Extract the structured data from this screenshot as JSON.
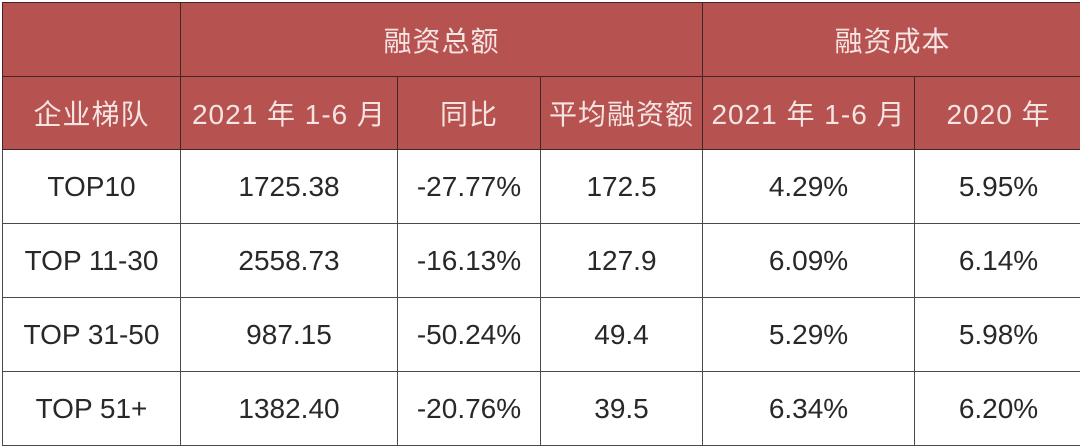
{
  "colors": {
    "header_bg": "#b65350",
    "header_text": "#f6e4e2",
    "body_text": "#282828",
    "grid_header": "#402626",
    "grid_body": "#4a4a4a"
  },
  "chart_data": {
    "type": "table",
    "header_groups": [
      {
        "label": "",
        "span": 1
      },
      {
        "label": "融资总额",
        "span": 3
      },
      {
        "label": "融资成本",
        "span": 2
      }
    ],
    "columns": [
      "企业梯队",
      "2021 年 1-6 月",
      "同比",
      "平均融资额",
      "2021 年 1-6 月",
      "2020 年"
    ],
    "rows": [
      [
        "TOP10",
        "1725.38",
        "-27.77%",
        "172.5",
        "4.29%",
        "5.95%"
      ],
      [
        "TOP 11-30",
        "2558.73",
        "-16.13%",
        "127.9",
        "6.09%",
        "6.14%"
      ],
      [
        "TOP 31-50",
        "987.15",
        "-50.24%",
        "49.4",
        "5.29%",
        "5.98%"
      ],
      [
        "TOP 51+",
        "1382.40",
        "-20.76%",
        "39.5",
        "6.34%",
        "6.20%"
      ]
    ]
  }
}
